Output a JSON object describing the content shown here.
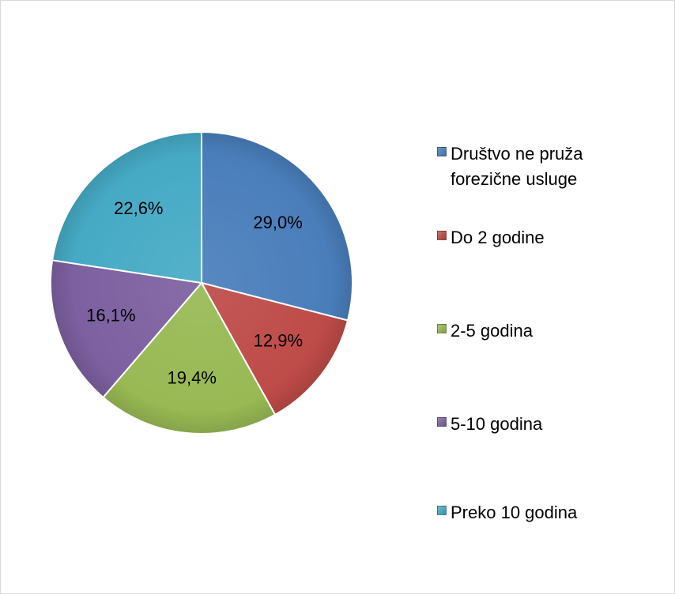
{
  "chart_data": {
    "type": "pie",
    "title": "",
    "slices": [
      {
        "label": "Društvo ne pruža forezične usluge",
        "value": 29.0,
        "display": "29,0%",
        "color": "#4a7ebb"
      },
      {
        "label": "Do 2 godine",
        "value": 12.9,
        "display": "12,9%",
        "color": "#be4b48"
      },
      {
        "label": "2-5 godina",
        "value": 19.4,
        "display": "19,4%",
        "color": "#98b954"
      },
      {
        "label": "5-10 godina",
        "value": 16.1,
        "display": "16,1%",
        "color": "#7d60a0"
      },
      {
        "label": "Preko 10 godina",
        "value": 22.6,
        "display": "22,6%",
        "color": "#46aac5"
      }
    ],
    "legend_position": "right"
  }
}
